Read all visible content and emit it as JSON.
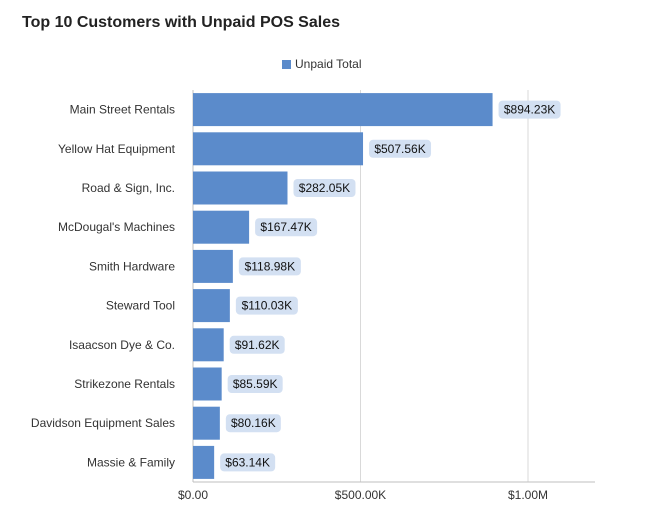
{
  "chart_data": {
    "type": "bar",
    "orientation": "horizontal",
    "title": "Top 10 Customers with Unpaid POS Sales",
    "categories": [
      "Main Street Rentals",
      "Yellow Hat Equipment",
      "Road & Sign, Inc.",
      "McDougal's Machines",
      "Smith Hardware",
      "Steward Tool",
      "Isaacson Dye & Co.",
      "Strikezone Rentals",
      "Davidson Equipment Sales",
      "Massie & Family"
    ],
    "series": [
      {
        "name": "Unpaid Total",
        "values": [
          894230,
          507560,
          282050,
          167470,
          118980,
          110030,
          91620,
          85590,
          80160,
          63140
        ],
        "labels": [
          "$894.23K",
          "$507.56K",
          "$282.05K",
          "$167.47K",
          "$118.98K",
          "$110.03K",
          "$91.62K",
          "$85.59K",
          "$80.16K",
          "$63.14K"
        ]
      }
    ],
    "xlim": [
      0,
      1200000
    ],
    "xticks": [
      0,
      500000,
      1000000
    ],
    "xtick_labels": [
      "$0.00",
      "$500.00K",
      "$1.00M"
    ],
    "grid": "vertical",
    "legend_position": "top-center",
    "colors": {
      "bar": "#5b8bcb",
      "data_label_bg": "#d3e0f2",
      "grid": "#d9d9d9",
      "axis": "#bfbfbf"
    }
  }
}
